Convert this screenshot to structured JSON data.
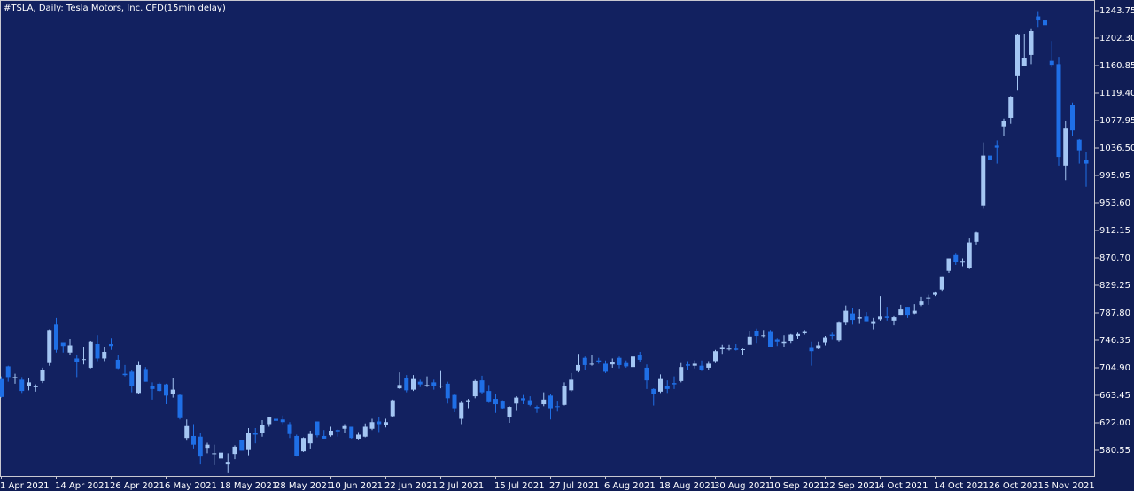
{
  "chart_data": {
    "type": "candlestick",
    "title": "#TSLA, Daily:  Tesla Motors, Inc.  CFD(15min delay)",
    "up_color": "#a4c6f3",
    "down_color": "#1f6fe6",
    "categories": [
      "1 Apr 2021",
      null,
      null,
      null,
      null,
      null,
      null,
      null,
      "14 Apr 2021",
      null,
      null,
      null,
      null,
      null,
      null,
      null,
      "26 Apr 2021",
      null,
      null,
      null,
      null,
      null,
      null,
      null,
      "6 May 2021",
      null,
      null,
      null,
      null,
      null,
      null,
      null,
      "18 May 2021",
      null,
      null,
      null,
      null,
      null,
      null,
      null,
      "28 May 2021",
      null,
      null,
      null,
      null,
      null,
      null,
      null,
      "10 Jun 2021",
      null,
      null,
      null,
      null,
      null,
      null,
      null,
      "22 Jun 2021",
      null,
      null,
      null,
      null,
      null,
      null,
      null,
      "2 Jul 2021",
      null,
      null,
      null,
      null,
      null,
      null,
      null,
      "15 Jul 2021",
      null,
      null,
      null,
      null,
      null,
      null,
      null,
      "27 Jul 2021",
      null,
      null,
      null,
      null,
      null,
      null,
      null,
      "6 Aug 2021",
      null,
      null,
      null,
      null,
      null,
      null,
      null,
      "18 Aug 2021",
      null,
      null,
      null,
      null,
      null,
      null,
      null,
      "30 Aug 2021",
      null,
      null,
      null,
      null,
      null,
      null,
      null,
      "10 Sep 2021",
      null,
      null,
      null,
      null,
      null,
      null,
      null,
      "22 Sep 2021",
      null,
      null,
      null,
      null,
      null,
      null,
      null,
      "4 Oct 2021",
      null,
      null,
      null,
      null,
      null,
      null,
      null,
      "14 Oct 2021",
      null,
      null,
      null,
      null,
      null,
      null,
      null,
      "26 Oct 2021",
      null,
      null,
      null,
      null,
      null,
      null,
      null,
      "5 Nov 2021",
      null,
      null,
      null,
      null,
      null,
      null
    ],
    "open": [
      688,
      707,
      690,
      687,
      677,
      677,
      685,
      712,
      770,
      743,
      728,
      719,
      717,
      705,
      741,
      719,
      741,
      717,
      696,
      699,
      667,
      703,
      678,
      681,
      680,
      665,
      664,
      599,
      602,
      601,
      583,
      575,
      568,
      559,
      575,
      596,
      581,
      607,
      607,
      620,
      628,
      627,
      620,
      602,
      579,
      591,
      624,
      602,
      603,
      611,
      613,
      616,
      598,
      601,
      613,
      624,
      618,
      632,
      674,
      690,
      672,
      684,
      679,
      683,
      678,
      681,
      664,
      628,
      653,
      662,
      686,
      670,
      658,
      654,
      630,
      651,
      659,
      656,
      646,
      650,
      663,
      647,
      649,
      671,
      700,
      720,
      711,
      716,
      711,
      710,
      720,
      712,
      706,
      724,
      705,
      673,
      669,
      678,
      682,
      685,
      710,
      708,
      708,
      705,
      715,
      733,
      734,
      734,
      733,
      740,
      761,
      753,
      759,
      747,
      742,
      745,
      753,
      757,
      735,
      734,
      743,
      755,
      746,
      774,
      787,
      779,
      782,
      771,
      778,
      782,
      776,
      785,
      797,
      787,
      800,
      811,
      815,
      823,
      851,
      875,
      865,
      856,
      895,
      950,
      1025,
      1040,
      1069,
      1082,
      1145,
      1160,
      1177,
      1235,
      1229,
      1168,
      1163,
      1010,
      1102,
      1049,
      1018
    ],
    "high": [
      692,
      708,
      696,
      691,
      689,
      680,
      705,
      763,
      780,
      743,
      749,
      725,
      737,
      745,
      754,
      737,
      750,
      724,
      709,
      702,
      715,
      706,
      683,
      683,
      681,
      690,
      665,
      627,
      620,
      606,
      592,
      589,
      596,
      576,
      588,
      596,
      614,
      614,
      626,
      631,
      635,
      633,
      623,
      604,
      600,
      610,
      624,
      611,
      616,
      612,
      620,
      616,
      608,
      621,
      628,
      631,
      628,
      657,
      698,
      694,
      694,
      687,
      692,
      687,
      700,
      684,
      665,
      654,
      658,
      687,
      693,
      679,
      666,
      656,
      647,
      662,
      664,
      662,
      648,
      668,
      666,
      654,
      683,
      697,
      726,
      722,
      724,
      720,
      716,
      719,
      722,
      716,
      723,
      729,
      710,
      674,
      695,
      686,
      692,
      712,
      715,
      716,
      716,
      715,
      732,
      740,
      740,
      741,
      734,
      760,
      764,
      762,
      762,
      750,
      754,
      756,
      758,
      762,
      744,
      744,
      753,
      758,
      775,
      799,
      795,
      793,
      789,
      780,
      813,
      797,
      784,
      800,
      797,
      801,
      812,
      815,
      820,
      843,
      870,
      877,
      870,
      900,
      910,
      1045,
      1070,
      1048,
      1081,
      1115,
      1209,
      1209,
      1216,
      1243,
      1239,
      1198,
      1174,
      1078,
      1105,
      1050,
      1031
    ],
    "low": [
      660,
      684,
      681,
      667,
      671,
      669,
      682,
      708,
      728,
      728,
      724,
      691,
      710,
      704,
      715,
      715,
      732,
      703,
      692,
      668,
      666,
      684,
      657,
      669,
      650,
      660,
      627,
      595,
      582,
      559,
      576,
      558,
      565,
      546,
      567,
      580,
      573,
      591,
      601,
      616,
      622,
      620,
      599,
      571,
      578,
      582,
      600,
      598,
      601,
      601,
      607,
      598,
      597,
      600,
      611,
      608,
      615,
      630,
      673,
      668,
      670,
      676,
      676,
      672,
      674,
      651,
      638,
      620,
      644,
      659,
      666,
      652,
      637,
      642,
      622,
      640,
      650,
      647,
      637,
      647,
      627,
      639,
      648,
      669,
      698,
      701,
      708,
      711,
      697,
      705,
      704,
      705,
      699,
      714,
      673,
      648,
      667,
      667,
      673,
      683,
      702,
      704,
      700,
      702,
      712,
      726,
      731,
      731,
      724,
      740,
      742,
      751,
      736,
      738,
      737,
      742,
      748,
      755,
      708,
      733,
      739,
      747,
      744,
      769,
      770,
      771,
      775,
      763,
      776,
      776,
      769,
      785,
      780,
      786,
      798,
      800,
      813,
      821,
      848,
      860,
      858,
      855,
      891,
      945,
      1010,
      1013,
      1054,
      1073,
      1123,
      1160,
      1163,
      1218,
      1208,
      1158,
      1010,
      988,
      1054,
      1013,
      978
    ],
    "close": [
      661,
      691,
      691,
      670,
      683,
      677,
      701,
      762,
      732,
      738,
      739,
      714,
      718,
      744,
      719,
      729,
      738,
      704,
      694,
      677,
      709,
      684,
      673,
      670,
      663,
      672,
      629,
      617,
      589,
      571,
      589,
      576,
      577,
      563,
      586,
      580,
      606,
      604,
      619,
      630,
      625,
      623,
      605,
      572,
      599,
      605,
      603,
      598,
      610,
      609,
      617,
      599,
      604,
      616,
      623,
      620,
      623,
      656,
      679,
      671,
      688,
      680,
      679,
      677,
      678,
      659,
      644,
      652,
      656,
      685,
      668,
      653,
      650,
      644,
      646,
      660,
      656,
      649,
      644,
      657,
      644,
      646,
      677,
      687,
      709,
      709,
      711,
      714,
      699,
      713,
      709,
      707,
      722,
      717,
      686,
      665,
      688,
      673,
      680,
      706,
      708,
      711,
      701,
      711,
      730,
      735,
      734,
      732,
      733,
      752,
      753,
      754,
      736,
      744,
      744,
      755,
      756,
      759,
      730,
      739,
      751,
      753,
      774,
      791,
      777,
      781,
      775,
      775,
      782,
      780,
      781,
      793,
      785,
      791,
      805,
      811,
      818,
      843,
      870,
      864,
      865,
      894,
      909,
      1025,
      1018,
      1037,
      1077,
      1114,
      1208,
      1172,
      1213,
      1229,
      1222,
      1162,
      1023,
      1067,
      1063,
      1033,
      1013
    ],
    "ylim": [
      540.44,
      1259.8
    ],
    "yticks": [
      1243.75,
      {
        "value": 1202.3,
        "label": "1202.30"
      },
      1160.85,
      {
        "value": 1119.4,
        "label": "1119.40"
      },
      1077.95,
      {
        "value": 1036.5,
        "label": "1036.50"
      },
      995.05,
      {
        "value": 953.6,
        "label": "953.60"
      },
      912.15,
      {
        "value": 870.7,
        "label": "870.70"
      },
      829.25,
      {
        "value": 787.8,
        "label": "787.80"
      },
      746.35,
      {
        "value": 704.9,
        "label": "704.90"
      },
      663.45,
      {
        "value": 622,
        "label": "622.00"
      },
      580.55
    ]
  }
}
